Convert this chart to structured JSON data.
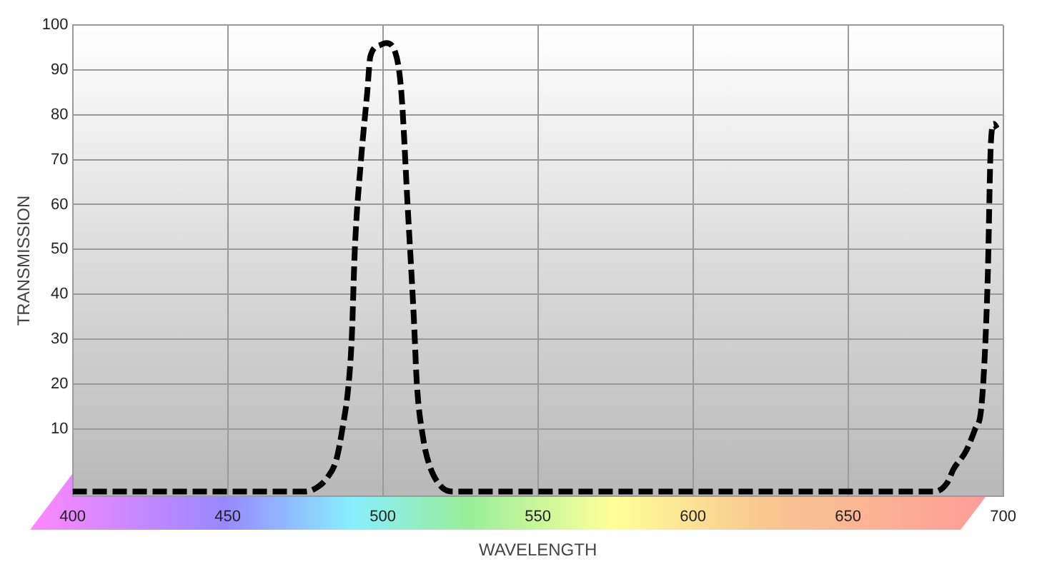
{
  "chart_data": {
    "type": "line",
    "xlabel": "WAVELENGTH",
    "ylabel": "TRANSMISSION",
    "xlim": [
      400,
      700
    ],
    "xticks": [
      400,
      450,
      500,
      550,
      600,
      650,
      700
    ],
    "ylim": [
      -5,
      100
    ],
    "yticks": [
      10,
      20,
      30,
      40,
      50,
      60,
      70,
      80,
      90,
      100
    ],
    "grid": true,
    "legend": false,
    "marker": "none",
    "line_style": "dashed",
    "series": [
      {
        "color": "#000000",
        "x": [
          400,
          420,
          440,
          460,
          475,
          479,
          482,
          485,
          487,
          489,
          490,
          491,
          493,
          495,
          496,
          499,
          501,
          504,
          506,
          508,
          510,
          511,
          513,
          515,
          519,
          523,
          540,
          560,
          580,
          600,
          620,
          640,
          660,
          678,
          682,
          684,
          688,
          691,
          693,
          695,
          696,
          697,
          698
        ],
        "values": [
          -4,
          -4,
          -4,
          -4,
          -4,
          -3,
          -1,
          3,
          10,
          20,
          30,
          50,
          70,
          85,
          93,
          95.5,
          96,
          94,
          85,
          60,
          35,
          20,
          8,
          2,
          -3,
          -4,
          -4,
          -4,
          -4,
          -4,
          -4,
          -4,
          -4,
          -4,
          -2,
          1,
          5,
          10,
          15,
          43,
          73,
          78,
          77
        ]
      }
    ]
  }
}
